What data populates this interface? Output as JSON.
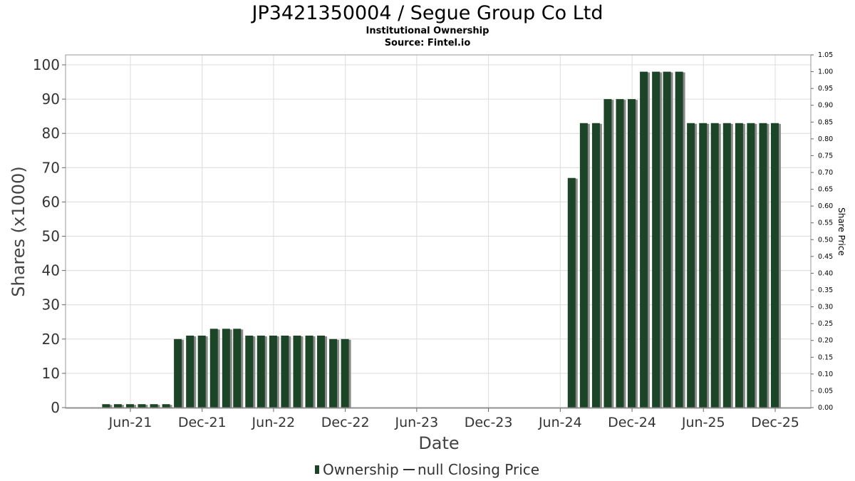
{
  "chart_data": {
    "type": "bar",
    "title": "JP3421350004 / Segue Group Co Ltd",
    "subtitle": "Institutional Ownership",
    "source": "Source: Fintel.io",
    "xlabel": "Date",
    "ylabel": "Shares (x1000)",
    "y2label": "Share Price",
    "ylim": [
      0,
      100
    ],
    "y2lim": [
      0,
      1.05
    ],
    "grid": true,
    "legend_position": "bottom-center",
    "colors": {
      "bar": "#1b4526",
      "bar_shadow": "#8a8a8a"
    },
    "x_ticks": [
      "Jun-21",
      "Dec-21",
      "Jun-22",
      "Dec-22",
      "Jun-23",
      "Dec-23",
      "Jun-24",
      "Dec-24",
      "Jun-25",
      "Dec-25"
    ],
    "y_ticks": [
      0,
      10,
      20,
      30,
      40,
      50,
      60,
      70,
      80,
      90,
      100
    ],
    "y2_ticks": [
      "0.00",
      "0.05",
      "0.10",
      "0.15",
      "0.20",
      "0.25",
      "0.30",
      "0.35",
      "0.40",
      "0.45",
      "0.50",
      "0.55",
      "0.60",
      "0.65",
      "0.70",
      "0.75",
      "0.80",
      "0.85",
      "0.90",
      "0.95",
      "1.00",
      "1.05"
    ],
    "series": [
      {
        "name": "Ownership",
        "x": [
          "2021-03-31",
          "2021-04-30",
          "2021-05-31",
          "2021-06-30",
          "2021-07-31",
          "2021-08-31",
          "2021-09-30",
          "2021-10-31",
          "2021-11-30",
          "2021-12-31",
          "2022-01-31",
          "2022-02-28",
          "2022-03-31",
          "2022-04-30",
          "2022-05-31",
          "2022-06-30",
          "2022-07-31",
          "2022-08-31",
          "2022-09-30",
          "2022-10-31",
          "2022-11-30",
          "2024-06-30",
          "2024-07-31",
          "2024-08-31",
          "2024-09-30",
          "2024-10-31",
          "2024-11-30",
          "2024-12-31",
          "2025-01-31",
          "2025-02-28",
          "2025-03-31",
          "2025-04-30",
          "2025-05-31",
          "2025-06-30",
          "2025-07-31",
          "2025-08-31",
          "2025-09-30",
          "2025-10-31",
          "2025-11-30"
        ],
        "values": [
          1,
          1,
          1,
          1,
          1,
          1,
          20,
          21,
          21,
          23,
          23,
          23,
          21,
          21,
          21,
          21,
          21,
          21,
          21,
          20,
          20,
          67,
          83,
          83,
          90,
          90,
          90,
          98,
          98,
          98,
          98,
          83,
          83,
          83,
          83,
          83,
          83,
          83,
          83
        ]
      }
    ],
    "legend": [
      {
        "label": "Ownership",
        "kind": "bar"
      },
      {
        "label": "null Closing Price",
        "kind": "line"
      }
    ]
  }
}
